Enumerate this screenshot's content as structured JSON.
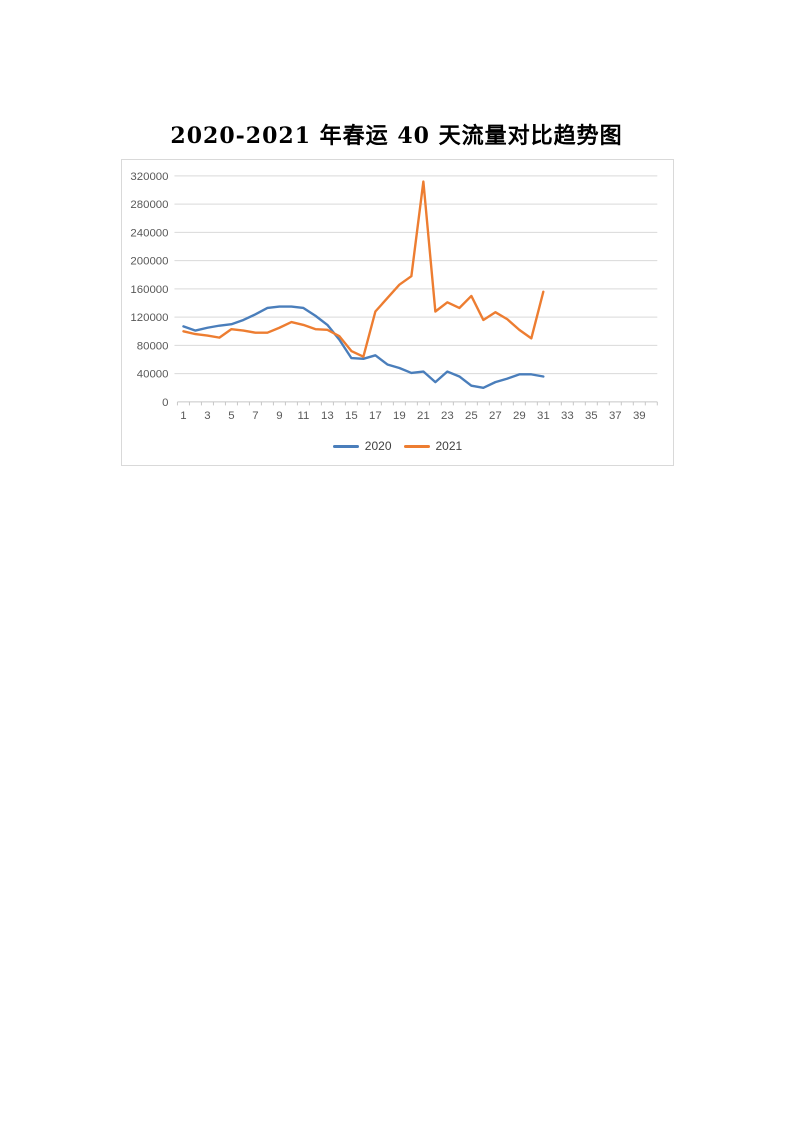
{
  "page": {
    "title": "2020-2021 年春运 40 天流量对比趋势图"
  },
  "chart_data": {
    "type": "line",
    "title": "2020-2021 年春运 40 天流量对比趋势图",
    "x": [
      1,
      2,
      3,
      4,
      5,
      6,
      7,
      8,
      9,
      10,
      11,
      12,
      13,
      14,
      15,
      16,
      17,
      18,
      19,
      20,
      21,
      22,
      23,
      24,
      25,
      26,
      27,
      28,
      29,
      30,
      31
    ],
    "x_axis_tick_labels": [
      1,
      3,
      5,
      7,
      9,
      11,
      13,
      15,
      17,
      19,
      21,
      23,
      25,
      27,
      29,
      31,
      33,
      35,
      37,
      39
    ],
    "x_categories_total": 40,
    "series": [
      {
        "name": "2020",
        "color": "#4A7EBB",
        "values": [
          107000,
          101000,
          105000,
          108000,
          110000,
          116000,
          124000,
          133000,
          135000,
          135000,
          133000,
          122000,
          109000,
          88000,
          62000,
          61000,
          66000,
          53000,
          48000,
          41000,
          43000,
          28000,
          43000,
          36000,
          23000,
          20000,
          28000,
          33000,
          39000,
          39000,
          36000
        ]
      },
      {
        "name": "2021",
        "color": "#ED7D31",
        "values": [
          100000,
          96000,
          94000,
          91000,
          103000,
          101000,
          98000,
          98000,
          105000,
          113000,
          109000,
          103000,
          102000,
          93000,
          72000,
          64000,
          128000,
          147000,
          166000,
          178000,
          312000,
          128000,
          141000,
          133000,
          150000,
          116000,
          127000,
          117000,
          102000,
          90000,
          156000
        ]
      }
    ],
    "ylim": [
      0,
      320000
    ],
    "y_step": 40000,
    "xlabel": "",
    "ylabel": "",
    "grid": true,
    "legend_position": "bottom"
  },
  "style": {
    "grid_color": "#d9d9d9",
    "axis_line_color": "#c6c6c6",
    "axis_label_color": "#595959",
    "chart_border_color": "#d9d9d9",
    "legend_text_color": "#404040",
    "title_color": "#000000",
    "line_width": 2.4
  }
}
